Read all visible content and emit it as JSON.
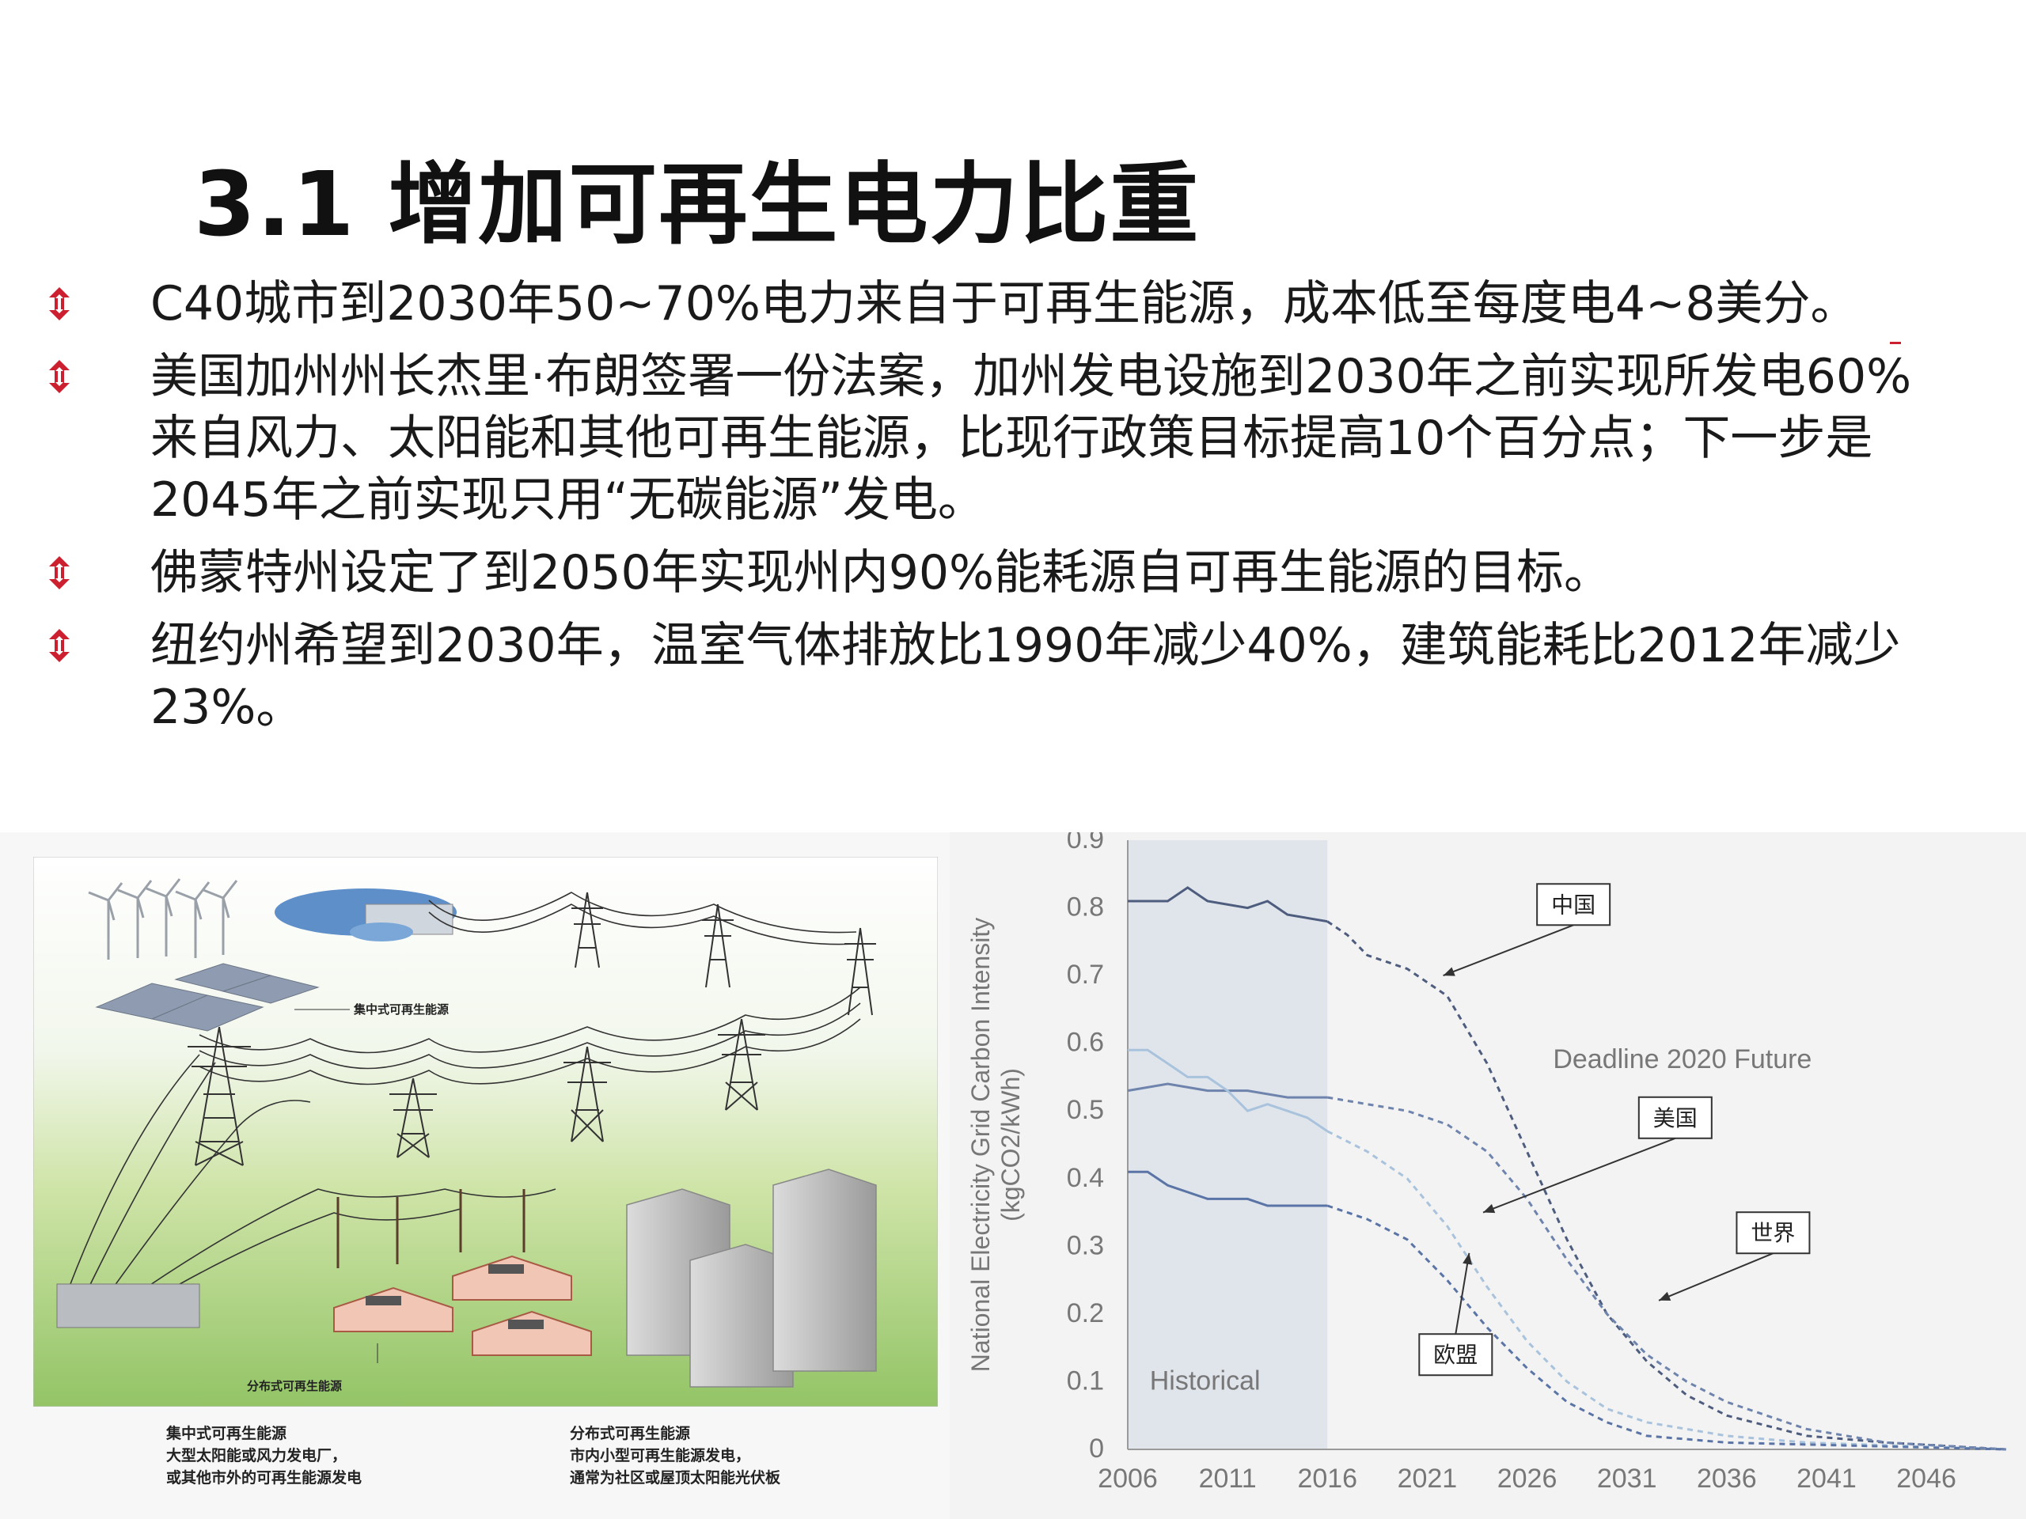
{
  "slide": {
    "title": "3.1 增加可再生电力比重",
    "bullets": [
      {
        "text": "C40城市到2030年50~70%电力来自于可再生能源，成本低至每度电4~8美分。"
      },
      {
        "text": "美国加州州长杰里·布朗签署一份法案，加州发电设施到2030年之前实现所发电60%来自风力、太阳能和其他可再生能源，比现行政策目标提高10个百分点；下一步是2045年之前实现只用“无碳能源”发电。"
      },
      {
        "text": "佛蒙特州设定了到2050年实现州内90%能耗源自可再生能源的目标。"
      },
      {
        "text": "纽约州希望到2030年，温室气体排放比1990年减少40%，建筑能耗比2012年减少23%。"
      }
    ],
    "accent_color": "#cc1f2f"
  },
  "illustration": {
    "label_centralized": "集中式可再生能源",
    "label_distributed": "分布式可再生能源",
    "caption_left": {
      "title": "集中式可再生能源",
      "lines": [
        "大型太阳能或风力发电厂，",
        "或其他市外的可再生能源发电"
      ]
    },
    "caption_right": {
      "title": "分布式可再生能源",
      "lines": [
        "市内小型可再生能源发电，",
        "通常为社区或屋顶太阳能光伏板"
      ]
    }
  },
  "chart_data": {
    "type": "line",
    "ylabel": "National Electricity Grid Carbon Intensity",
    "ylabel_unit": "(kgCO2/kWh)",
    "xlabel": "",
    "title": "",
    "ylim": [
      0,
      0.9
    ],
    "xlim": [
      2006,
      2050
    ],
    "y_ticks": [
      "0",
      "0.1",
      "0.2",
      "0.3",
      "0.4",
      "0.5",
      "0.6",
      "0.7",
      "0.8",
      "0.9"
    ],
    "x_ticks": [
      "2006",
      "2011",
      "2016",
      "2021",
      "2026",
      "2031",
      "2036",
      "2041",
      "2046"
    ],
    "historical_range": [
      2006,
      2016
    ],
    "region_labels": {
      "historical": "Historical",
      "future": "Deadline 2020 Future"
    },
    "colors": {
      "china": "#4e5c7e",
      "usa": "#6e84ad",
      "world": "#a9c3dd",
      "eu": "#5a74a6",
      "historical_band": "#e0e5ec"
    },
    "series": [
      {
        "name": "中国",
        "historical": [
          [
            2006,
            0.81
          ],
          [
            2008,
            0.81
          ],
          [
            2009,
            0.83
          ],
          [
            2010,
            0.81
          ],
          [
            2012,
            0.8
          ],
          [
            2013,
            0.81
          ],
          [
            2014,
            0.79
          ],
          [
            2016,
            0.78
          ]
        ],
        "projection": [
          [
            2016,
            0.78
          ],
          [
            2017,
            0.76
          ],
          [
            2018,
            0.73
          ],
          [
            2020,
            0.71
          ],
          [
            2022,
            0.67
          ],
          [
            2024,
            0.57
          ],
          [
            2026,
            0.44
          ],
          [
            2028,
            0.31
          ],
          [
            2030,
            0.2
          ],
          [
            2032,
            0.13
          ],
          [
            2034,
            0.08
          ],
          [
            2036,
            0.05
          ],
          [
            2040,
            0.02
          ],
          [
            2044,
            0.01
          ],
          [
            2050,
            0.0
          ]
        ]
      },
      {
        "name": "美国",
        "historical": [
          [
            2006,
            0.53
          ],
          [
            2008,
            0.54
          ],
          [
            2010,
            0.53
          ],
          [
            2012,
            0.53
          ],
          [
            2014,
            0.52
          ],
          [
            2016,
            0.52
          ]
        ],
        "projection": [
          [
            2016,
            0.52
          ],
          [
            2018,
            0.51
          ],
          [
            2020,
            0.5
          ],
          [
            2022,
            0.48
          ],
          [
            2024,
            0.44
          ],
          [
            2026,
            0.37
          ],
          [
            2028,
            0.28
          ],
          [
            2030,
            0.2
          ],
          [
            2032,
            0.14
          ],
          [
            2034,
            0.1
          ],
          [
            2036,
            0.07
          ],
          [
            2040,
            0.03
          ],
          [
            2044,
            0.01
          ],
          [
            2050,
            0.0
          ]
        ]
      },
      {
        "name": "世界",
        "historical": [
          [
            2006,
            0.59
          ],
          [
            2007,
            0.59
          ],
          [
            2008,
            0.57
          ],
          [
            2009,
            0.55
          ],
          [
            2010,
            0.55
          ],
          [
            2011,
            0.53
          ],
          [
            2012,
            0.5
          ],
          [
            2013,
            0.51
          ],
          [
            2014,
            0.5
          ],
          [
            2015,
            0.49
          ],
          [
            2016,
            0.47
          ]
        ],
        "projection": [
          [
            2016,
            0.47
          ],
          [
            2018,
            0.44
          ],
          [
            2020,
            0.4
          ],
          [
            2022,
            0.33
          ],
          [
            2024,
            0.24
          ],
          [
            2026,
            0.16
          ],
          [
            2028,
            0.1
          ],
          [
            2030,
            0.06
          ],
          [
            2032,
            0.04
          ],
          [
            2036,
            0.02
          ],
          [
            2040,
            0.01
          ],
          [
            2050,
            0.0
          ]
        ]
      },
      {
        "name": "欧盟",
        "historical": [
          [
            2006,
            0.41
          ],
          [
            2007,
            0.41
          ],
          [
            2008,
            0.39
          ],
          [
            2010,
            0.37
          ],
          [
            2012,
            0.37
          ],
          [
            2013,
            0.36
          ],
          [
            2014,
            0.36
          ],
          [
            2016,
            0.36
          ]
        ],
        "projection": [
          [
            2016,
            0.36
          ],
          [
            2018,
            0.34
          ],
          [
            2020,
            0.31
          ],
          [
            2022,
            0.25
          ],
          [
            2024,
            0.18
          ],
          [
            2026,
            0.12
          ],
          [
            2028,
            0.07
          ],
          [
            2030,
            0.04
          ],
          [
            2032,
            0.02
          ],
          [
            2036,
            0.01
          ],
          [
            2050,
            0.0
          ]
        ]
      }
    ],
    "annotations": [
      {
        "text": "中国",
        "series": "中国",
        "box_x": 2026.5,
        "box_y": 0.805,
        "point": [
          2021.8,
          0.7
        ]
      },
      {
        "text": "美国",
        "series": "美国",
        "box_x": 2031.6,
        "box_y": 0.49,
        "point": [
          2023.8,
          0.35
        ]
      },
      {
        "text": "世界",
        "series": "世界",
        "box_x": 2036.5,
        "box_y": 0.32,
        "point": [
          2032.6,
          0.22
        ]
      },
      {
        "text": "欧盟",
        "series": "欧盟",
        "box_x": 2020.6,
        "box_y": 0.14,
        "point": [
          2023.1,
          0.29
        ]
      }
    ]
  }
}
